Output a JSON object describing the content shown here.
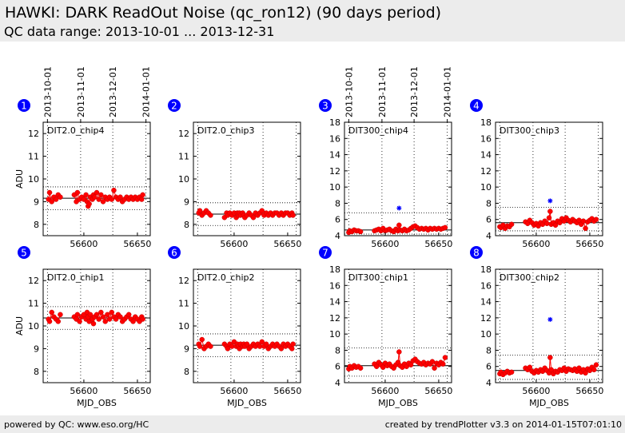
{
  "header": {
    "title": "HAWKI: DARK ReadOut Noise (qc_ron12) (90 days period)",
    "subtitle": "QC data range: 2013-10-01 ... 2013-12-31"
  },
  "footer": {
    "left": "powered by QC: www.eso.org/HC",
    "right": "created by trendPlotter v3.3 on 2014-01-15T07:01:10"
  },
  "colors": {
    "data": "#ff0000",
    "outlier": "#0000ff",
    "badge": "#0000ff",
    "header_bg": "#ececec"
  },
  "chart_data": [
    {
      "id": 1,
      "type": "scatter",
      "label": "DIT2.0_chip4",
      "ylabel": "ADU",
      "xlabel": "",
      "xlim": [
        56562,
        56662
      ],
      "ylim": [
        7.5,
        12.5
      ],
      "yticks": [
        8,
        9,
        10,
        11,
        12
      ],
      "xticks": [
        56600,
        56650
      ],
      "top_dates": [
        "2013-10-01",
        "2013-11-01",
        "2013-12-01",
        "2014-01-01"
      ],
      "mean": 9.15,
      "limits": [
        8.65,
        9.65
      ],
      "gaps": [
        [
          56580,
          56590
        ]
      ],
      "x": [
        56567,
        56568,
        56570,
        56572,
        56574,
        56576,
        56578,
        56591,
        56593,
        56594,
        56596,
        56598,
        56600,
        56602,
        56603,
        56604,
        56605,
        56606,
        56608,
        56609,
        56610,
        56612,
        56614,
        56616,
        56618,
        56620,
        56622,
        56624,
        56626,
        56628,
        56630,
        56632,
        56634,
        56636,
        56638,
        56640,
        56642,
        56644,
        56646,
        56648,
        56650,
        56652,
        56654,
        56655
      ],
      "y": [
        9.1,
        9.4,
        9.0,
        9.2,
        9.1,
        9.3,
        9.2,
        9.3,
        9.0,
        9.4,
        9.1,
        9.2,
        9.1,
        9.3,
        9.0,
        8.8,
        8.9,
        9.2,
        9.1,
        9.3,
        9.2,
        9.4,
        9.1,
        9.3,
        9.0,
        9.2,
        9.1,
        9.2,
        9.1,
        9.5,
        9.2,
        9.1,
        9.2,
        9.0,
        9.1,
        9.2,
        9.1,
        9.2,
        9.1,
        9.2,
        9.1,
        9.2,
        9.1,
        9.3
      ],
      "outliers": []
    },
    {
      "id": 2,
      "type": "scatter",
      "label": "DIT2.0_chip3",
      "ylabel": "",
      "xlabel": "",
      "xlim": [
        56562,
        56662
      ],
      "ylim": [
        7.5,
        12.5
      ],
      "yticks": [
        8,
        9,
        10,
        11,
        12
      ],
      "xticks": [
        56600,
        56650
      ],
      "top_dates": [],
      "mean": 8.45,
      "limits": [
        7.95,
        8.95
      ],
      "gaps": [
        [
          56580,
          56590
        ]
      ],
      "x": [
        56567,
        56568,
        56570,
        56572,
        56574,
        56576,
        56578,
        56591,
        56593,
        56594,
        56596,
        56598,
        56600,
        56602,
        56603,
        56604,
        56605,
        56606,
        56608,
        56609,
        56610,
        56612,
        56614,
        56616,
        56618,
        56620,
        56622,
        56624,
        56626,
        56628,
        56630,
        56632,
        56634,
        56636,
        56638,
        56640,
        56642,
        56644,
        56646,
        56648,
        56650,
        56652,
        56654,
        56655
      ],
      "y": [
        8.5,
        8.6,
        8.4,
        8.5,
        8.6,
        8.5,
        8.4,
        8.3,
        8.5,
        8.4,
        8.5,
        8.4,
        8.5,
        8.3,
        8.5,
        8.4,
        8.5,
        8.4,
        8.5,
        8.4,
        8.3,
        8.4,
        8.5,
        8.4,
        8.3,
        8.5,
        8.4,
        8.5,
        8.6,
        8.4,
        8.5,
        8.4,
        8.5,
        8.4,
        8.5,
        8.5,
        8.4,
        8.5,
        8.4,
        8.5,
        8.5,
        8.4,
        8.5,
        8.4
      ],
      "outliers": []
    },
    {
      "id": 3,
      "type": "scatter",
      "label": "DIT300_chip4",
      "ylabel": "",
      "xlabel": "",
      "xlim": [
        56562,
        56662
      ],
      "ylim": [
        4,
        18
      ],
      "yticks": [
        4,
        6,
        8,
        10,
        12,
        14,
        16,
        18
      ],
      "xticks": [
        56600,
        56650
      ],
      "top_dates": [
        "2013-10-01",
        "2013-11-01",
        "2013-12-01",
        "2014-01-01"
      ],
      "mean": 4.7,
      "limits": [
        4.2,
        6.8
      ],
      "gaps": [
        [
          56580,
          56590
        ]
      ],
      "x": [
        56566,
        56567,
        56569,
        56571,
        56573,
        56575,
        56577,
        56590,
        56592,
        56594,
        56596,
        56598,
        56600,
        56602,
        56604,
        56606,
        56608,
        56610,
        56612,
        56613,
        56614,
        56616,
        56618,
        56620,
        56622,
        56624,
        56626,
        56628,
        56630,
        56632,
        56634,
        56636,
        56638,
        56640,
        56642,
        56644,
        56646,
        56648,
        56650,
        56652,
        56654,
        56656
      ],
      "y": [
        4.4,
        4.6,
        4.5,
        4.7,
        4.6,
        4.6,
        4.5,
        4.6,
        4.7,
        4.8,
        4.6,
        4.9,
        4.6,
        4.7,
        4.8,
        4.6,
        4.5,
        4.8,
        4.6,
        5.3,
        4.7,
        4.6,
        4.8,
        4.6,
        4.7,
        4.9,
        5.1,
        5.2,
        5.0,
        4.8,
        4.9,
        4.8,
        4.9,
        4.7,
        4.9,
        4.8,
        4.9,
        4.8,
        4.9,
        4.8,
        4.9,
        5.0
      ],
      "outliers": [
        {
          "x": 56613,
          "y": 7.4
        }
      ]
    },
    {
      "id": 4,
      "type": "scatter",
      "label": "DIT300_chip3",
      "ylabel": "",
      "xlabel": "",
      "xlim": [
        56562,
        56662
      ],
      "ylim": [
        4,
        18
      ],
      "yticks": [
        4,
        6,
        8,
        10,
        12,
        14,
        16,
        18
      ],
      "xticks": [
        56600,
        56650
      ],
      "top_dates": [],
      "mean": 5.6,
      "limits": [
        4.6,
        7.5
      ],
      "gaps": [
        [
          56580,
          56590
        ]
      ],
      "x": [
        56566,
        56567,
        56569,
        56571,
        56573,
        56575,
        56577,
        56590,
        56592,
        56594,
        56596,
        56598,
        56600,
        56602,
        56604,
        56606,
        56608,
        56610,
        56612,
        56613,
        56614,
        56616,
        56618,
        56620,
        56622,
        56624,
        56626,
        56628,
        56630,
        56632,
        56634,
        56636,
        56638,
        56640,
        56642,
        56644,
        56646,
        56648,
        56650,
        56652,
        56654,
        56656
      ],
      "y": [
        5.1,
        5.0,
        5.3,
        4.9,
        5.2,
        5.1,
        5.4,
        5.7,
        5.5,
        5.9,
        5.6,
        5.3,
        5.5,
        5.2,
        5.6,
        5.4,
        5.8,
        5.5,
        6.2,
        7.0,
        5.4,
        5.6,
        5.3,
        5.8,
        5.6,
        6.1,
        5.8,
        6.2,
        5.9,
        5.7,
        6.0,
        5.8,
        5.6,
        5.9,
        5.4,
        5.8,
        4.9,
        5.7,
        5.9,
        6.1,
        5.8,
        6.0
      ],
      "outliers": [
        {
          "x": 56613,
          "y": 8.3
        }
      ]
    },
    {
      "id": 5,
      "type": "scatter",
      "label": "DIT2.0_chip1",
      "ylabel": "ADU",
      "xlabel": "MJD_OBS",
      "xlim": [
        56562,
        56662
      ],
      "ylim": [
        7.5,
        12.5
      ],
      "yticks": [
        8,
        9,
        10,
        11,
        12
      ],
      "xticks": [
        56600,
        56650
      ],
      "top_dates": [],
      "mean": 10.35,
      "limits": [
        9.85,
        10.85
      ],
      "gaps": [
        [
          56580,
          56590
        ]
      ],
      "x": [
        56567,
        56568,
        56570,
        56572,
        56574,
        56576,
        56578,
        56591,
        56593,
        56594,
        56596,
        56598,
        56600,
        56602,
        56603,
        56604,
        56605,
        56606,
        56608,
        56609,
        56610,
        56612,
        56614,
        56616,
        56618,
        56620,
        56622,
        56624,
        56626,
        56628,
        56630,
        56632,
        56634,
        56636,
        56638,
        56640,
        56642,
        56644,
        56646,
        56648,
        56650,
        56652,
        56654,
        56655
      ],
      "y": [
        10.3,
        10.2,
        10.6,
        10.4,
        10.3,
        10.2,
        10.5,
        10.4,
        10.3,
        10.5,
        10.2,
        10.4,
        10.5,
        10.3,
        10.6,
        10.4,
        10.2,
        10.5,
        10.3,
        10.1,
        10.4,
        10.5,
        10.3,
        10.6,
        10.4,
        10.2,
        10.5,
        10.3,
        10.6,
        10.4,
        10.3,
        10.5,
        10.4,
        10.2,
        10.3,
        10.4,
        10.5,
        10.3,
        10.2,
        10.4,
        10.3,
        10.2,
        10.4,
        10.3
      ],
      "outliers": []
    },
    {
      "id": 6,
      "type": "scatter",
      "label": "DIT2.0_chip2",
      "ylabel": "",
      "xlabel": "MJD_OBS",
      "xlim": [
        56562,
        56662
      ],
      "ylim": [
        7.5,
        12.5
      ],
      "yticks": [
        8,
        9,
        10,
        11,
        12
      ],
      "xticks": [
        56600,
        56650
      ],
      "top_dates": [],
      "mean": 9.15,
      "limits": [
        8.65,
        9.65
      ],
      "gaps": [
        [
          56580,
          56590
        ]
      ],
      "x": [
        56567,
        56568,
        56570,
        56572,
        56574,
        56576,
        56578,
        56591,
        56593,
        56594,
        56596,
        56598,
        56600,
        56602,
        56603,
        56604,
        56605,
        56606,
        56608,
        56609,
        56610,
        56612,
        56614,
        56616,
        56618,
        56620,
        56622,
        56624,
        56626,
        56628,
        56630,
        56632,
        56634,
        56636,
        56638,
        56640,
        56642,
        56644,
        56646,
        56648,
        56650,
        56652,
        56654,
        56655
      ],
      "y": [
        9.2,
        9.1,
        9.4,
        9.0,
        9.1,
        9.2,
        9.1,
        9.2,
        9.1,
        9.0,
        9.2,
        9.1,
        9.3,
        9.1,
        9.2,
        9.1,
        9.0,
        9.2,
        9.1,
        9.2,
        9.1,
        9.2,
        9.0,
        9.1,
        9.2,
        9.1,
        9.2,
        9.1,
        9.3,
        9.1,
        9.2,
        9.0,
        9.1,
        9.2,
        9.1,
        9.2,
        9.1,
        9.0,
        9.2,
        9.1,
        9.2,
        9.1,
        9.0,
        9.2
      ],
      "outliers": []
    },
    {
      "id": 7,
      "type": "scatter",
      "label": "DIT300_chip1",
      "ylabel": "",
      "xlabel": "MJD_OBS",
      "xlim": [
        56562,
        56662
      ],
      "ylim": [
        4,
        18
      ],
      "yticks": [
        4,
        6,
        8,
        10,
        12,
        14,
        16,
        18
      ],
      "xticks": [
        56600,
        56650
      ],
      "top_dates": [],
      "mean": 6.1,
      "limits": [
        4.8,
        8.3
      ],
      "gaps": [
        [
          56580,
          56590
        ]
      ],
      "x": [
        56566,
        56567,
        56569,
        56571,
        56573,
        56575,
        56577,
        56590,
        56592,
        56594,
        56596,
        56598,
        56600,
        56602,
        56604,
        56606,
        56608,
        56610,
        56612,
        56613,
        56614,
        56616,
        56618,
        56620,
        56622,
        56624,
        56626,
        56628,
        56630,
        56632,
        56634,
        56636,
        56638,
        56640,
        56642,
        56644,
        56646,
        56648,
        56650,
        56652,
        56654,
        56656
      ],
      "y": [
        5.7,
        6.0,
        5.8,
        6.1,
        5.9,
        6.0,
        5.8,
        6.3,
        6.0,
        6.5,
        6.2,
        5.9,
        6.4,
        6.1,
        6.3,
        6.0,
        5.8,
        6.2,
        6.5,
        7.8,
        6.1,
        5.9,
        6.3,
        6.0,
        6.4,
        6.2,
        6.7,
        6.9,
        6.6,
        6.4,
        6.3,
        6.5,
        6.2,
        6.4,
        6.3,
        6.6,
        5.8,
        6.4,
        6.2,
        6.5,
        6.3,
        7.1
      ],
      "outliers": []
    },
    {
      "id": 8,
      "type": "scatter",
      "label": "DIT300_chip2",
      "ylabel": "",
      "xlabel": "MJD_OBS",
      "xlim": [
        56562,
        56662
      ],
      "ylim": [
        4,
        18
      ],
      "yticks": [
        4,
        6,
        8,
        10,
        12,
        14,
        16,
        18
      ],
      "xticks": [
        56600,
        56650
      ],
      "top_dates": [],
      "mean": 5.5,
      "limits": [
        4.4,
        7.4
      ],
      "gaps": [
        [
          56580,
          56590
        ]
      ],
      "x": [
        56566,
        56567,
        56569,
        56571,
        56573,
        56575,
        56577,
        56590,
        56592,
        56594,
        56596,
        56598,
        56600,
        56602,
        56604,
        56606,
        56608,
        56610,
        56612,
        56613,
        56614,
        56616,
        56618,
        56620,
        56622,
        56624,
        56626,
        56628,
        56630,
        56632,
        56634,
        56636,
        56638,
        56640,
        56642,
        56644,
        56646,
        56648,
        56650,
        56652,
        56654,
        56656
      ],
      "y": [
        5.1,
        5.3,
        5.0,
        5.2,
        5.4,
        5.2,
        5.3,
        5.8,
        5.6,
        5.9,
        5.4,
        5.2,
        5.5,
        5.3,
        5.6,
        5.4,
        5.8,
        5.5,
        5.2,
        7.1,
        5.6,
        5.1,
        5.4,
        5.3,
        5.6,
        5.5,
        5.8,
        5.4,
        5.7,
        5.6,
        5.5,
        5.7,
        5.4,
        5.8,
        5.3,
        5.6,
        5.2,
        5.7,
        5.5,
        5.9,
        5.6,
        6.2
      ],
      "outliers": [
        {
          "x": 56613,
          "y": 11.8
        }
      ]
    }
  ]
}
